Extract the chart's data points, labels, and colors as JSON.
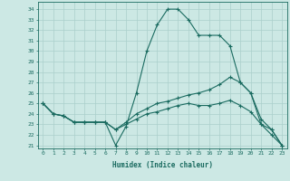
{
  "xlabel": "Humidex (Indice chaleur)",
  "background_color": "#cce8e4",
  "grid_color": "#aacfcb",
  "line_color": "#1a6b60",
  "xlim": [
    -0.5,
    23.5
  ],
  "ylim": [
    20.7,
    34.7
  ],
  "yticks": [
    21,
    22,
    23,
    24,
    25,
    26,
    27,
    28,
    29,
    30,
    31,
    32,
    33,
    34
  ],
  "xticks": [
    0,
    1,
    2,
    3,
    4,
    5,
    6,
    7,
    8,
    9,
    10,
    11,
    12,
    13,
    14,
    15,
    16,
    17,
    18,
    19,
    20,
    21,
    22,
    23
  ],
  "curve1_x": [
    0,
    1,
    2,
    3,
    4,
    5,
    6,
    7,
    8,
    9,
    10,
    11,
    12,
    13,
    14,
    15,
    16,
    17,
    18,
    19,
    20,
    21,
    22,
    23
  ],
  "curve1_y": [
    25.0,
    24.0,
    23.8,
    23.2,
    23.2,
    23.2,
    23.2,
    21.0,
    22.8,
    26.0,
    30.0,
    32.5,
    34.0,
    34.0,
    33.0,
    31.5,
    31.5,
    31.5,
    30.5,
    27.0,
    26.0,
    23.0,
    22.5,
    21.0
  ],
  "curve2_x": [
    0,
    1,
    2,
    3,
    4,
    5,
    6,
    7,
    8,
    9,
    10,
    11,
    12,
    13,
    14,
    15,
    16,
    17,
    18,
    19,
    20,
    21,
    22,
    23
  ],
  "curve2_y": [
    25.0,
    24.0,
    23.8,
    23.2,
    23.2,
    23.2,
    23.2,
    22.5,
    23.2,
    24.0,
    24.5,
    25.0,
    25.2,
    25.5,
    25.8,
    26.0,
    26.3,
    26.8,
    27.5,
    27.0,
    26.0,
    23.5,
    22.5,
    21.0
  ],
  "curve3_x": [
    0,
    1,
    2,
    3,
    4,
    5,
    6,
    7,
    8,
    9,
    10,
    11,
    12,
    13,
    14,
    15,
    16,
    17,
    18,
    19,
    20,
    21,
    22,
    23
  ],
  "curve3_y": [
    25.0,
    24.0,
    23.8,
    23.2,
    23.2,
    23.2,
    23.2,
    22.5,
    23.0,
    23.5,
    24.0,
    24.2,
    24.5,
    24.8,
    25.0,
    24.8,
    24.8,
    25.0,
    25.3,
    24.8,
    24.2,
    23.0,
    22.0,
    21.0
  ]
}
